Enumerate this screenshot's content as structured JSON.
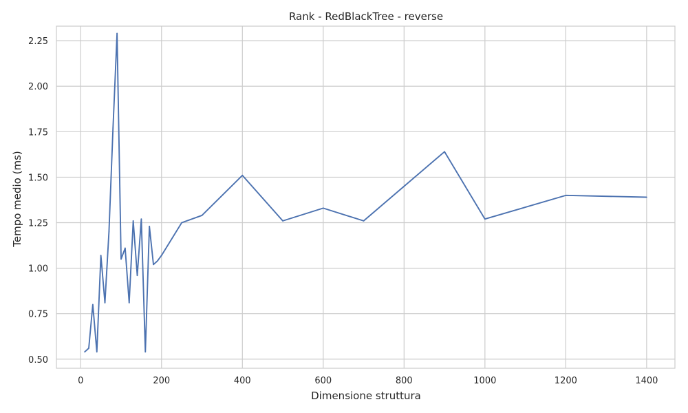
{
  "chart_data": {
    "type": "line",
    "title": "Rank - RedBlackTree - reverse",
    "xlabel": "Dimensione struttura",
    "ylabel": "Tempo medio (ms)",
    "xlim": [
      -60,
      1470
    ],
    "ylim": [
      0.45,
      2.33
    ],
    "xticks": [
      0,
      200,
      400,
      600,
      800,
      1000,
      1200,
      1400
    ],
    "xtick_labels": [
      "0",
      "200",
      "400",
      "600",
      "800",
      "1000",
      "1200",
      "1400"
    ],
    "yticks": [
      0.5,
      0.75,
      1.0,
      1.25,
      1.5,
      1.75,
      2.0,
      2.25
    ],
    "ytick_labels": [
      "0.50",
      "0.75",
      "1.00",
      "1.25",
      "1.50",
      "1.75",
      "2.00",
      "2.25"
    ],
    "grid": true,
    "colors": {
      "line": "#4c72b0",
      "grid": "#cccccc",
      "text": "#262626"
    },
    "series": [
      {
        "x": [
          10,
          20,
          30,
          40,
          50,
          60,
          70,
          80,
          90,
          100,
          110,
          120,
          130,
          140,
          150,
          160,
          170,
          180,
          190,
          200,
          250,
          300,
          400,
          500,
          600,
          700,
          800,
          900,
          1000,
          1200,
          1400
        ],
        "y": [
          0.54,
          0.56,
          0.8,
          0.54,
          1.07,
          0.81,
          1.2,
          1.77,
          2.29,
          1.05,
          1.11,
          0.81,
          1.26,
          0.96,
          1.27,
          0.54,
          1.23,
          1.02,
          1.04,
          1.07,
          1.25,
          1.29,
          1.51,
          1.26,
          1.33,
          1.26,
          1.45,
          1.64,
          1.27,
          1.4,
          1.39
        ]
      }
    ]
  }
}
